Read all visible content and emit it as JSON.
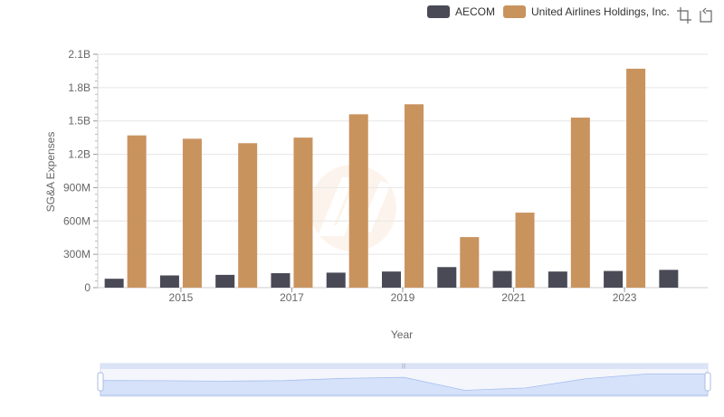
{
  "chart_data": {
    "type": "bar",
    "xlabel": "Year",
    "ylabel": "SG&A Expenses",
    "ylim": [
      0,
      2100000000
    ],
    "yticks": [
      {
        "value": 0,
        "label": "0"
      },
      {
        "value": 300000000,
        "label": "300M"
      },
      {
        "value": 600000000,
        "label": "600M"
      },
      {
        "value": 900000000,
        "label": "900M"
      },
      {
        "value": 1200000000,
        "label": "1.2B"
      },
      {
        "value": 1500000000,
        "label": "1.5B"
      },
      {
        "value": 1800000000,
        "label": "1.8B"
      },
      {
        "value": 2100000000,
        "label": "2.1B"
      }
    ],
    "categories": [
      "2014",
      "2015",
      "2016",
      "2017",
      "2018",
      "2019",
      "2020",
      "2021",
      "2022",
      "2023",
      "2024"
    ],
    "xtick_labels": [
      "2015",
      "2017",
      "2019",
      "2021",
      "2023"
    ],
    "grid": true,
    "legend_position": "top-right",
    "series": [
      {
        "name": "AECOM",
        "color": "#4a4a57",
        "values": [
          80000000,
          110000000,
          115000000,
          130000000,
          135000000,
          145000000,
          185000000,
          150000000,
          145000000,
          150000000,
          160000000
        ]
      },
      {
        "name": "United Airlines Holdings, Inc.",
        "color": "#c9935e",
        "values": [
          1370000000,
          1340000000,
          1300000000,
          1350000000,
          1560000000,
          1650000000,
          455000000,
          675000000,
          1530000000,
          1970000000,
          null
        ]
      }
    ]
  },
  "toolbar": {
    "zoom_icon": "zoom-select-icon",
    "reset_icon": "zoom-reset-icon"
  },
  "slider": {
    "handle_color": "#aabbe6",
    "fill_color": "#d6e2fa"
  }
}
